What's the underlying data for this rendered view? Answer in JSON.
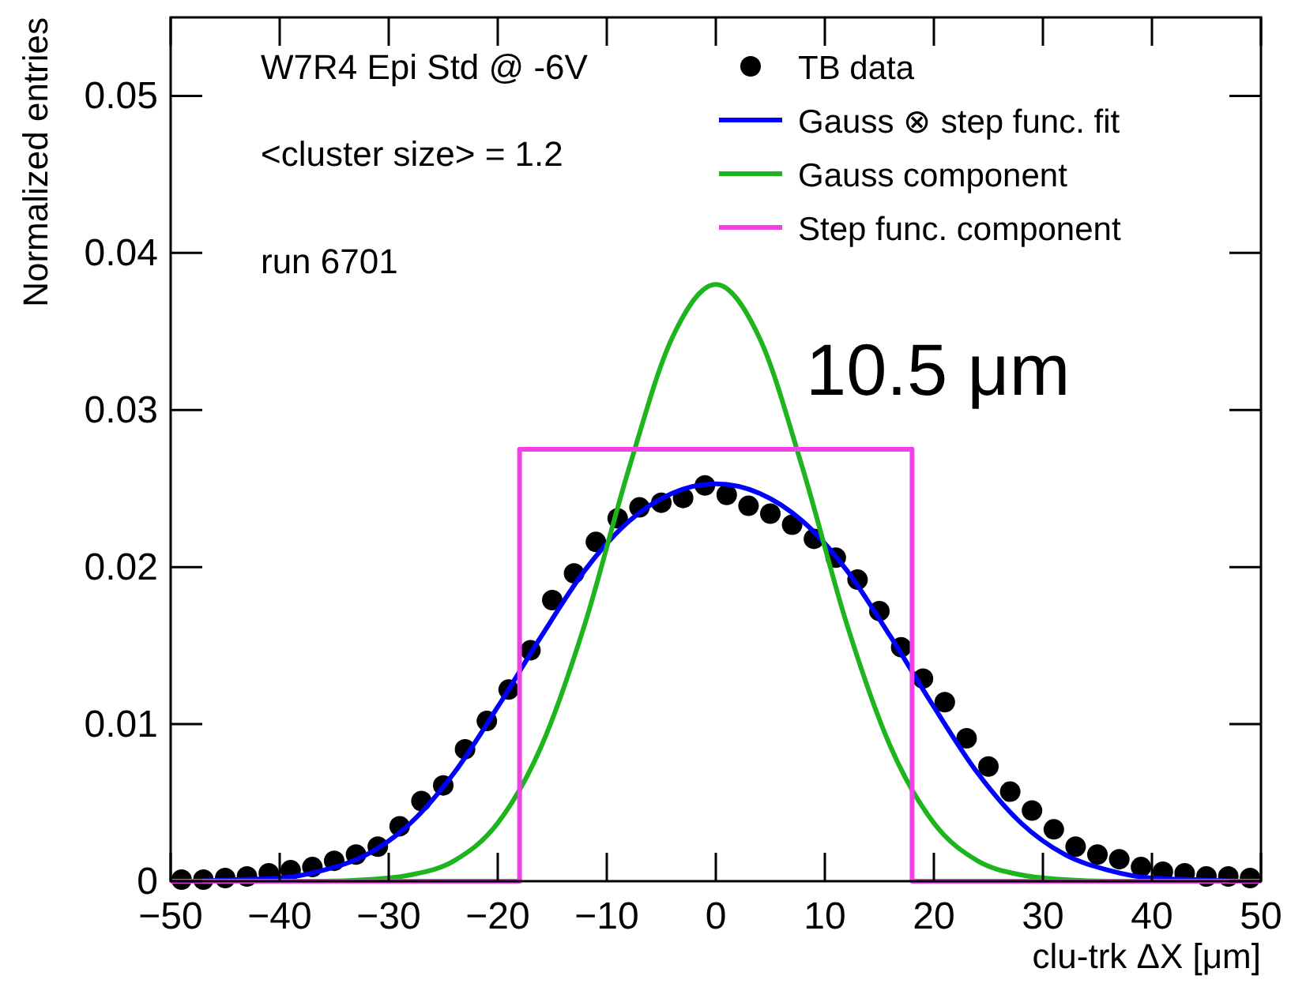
{
  "chart_data": {
    "type": "scatter",
    "xlabel": "clu-trk ΔX [μm]",
    "ylabel": "Normalized entries",
    "xlim": [
      -50,
      50
    ],
    "xticks": [
      -50,
      -40,
      -30,
      -20,
      -10,
      0,
      10,
      20,
      30,
      40,
      50
    ],
    "ylim": [
      0,
      0.055
    ],
    "yticks": [
      0,
      0.01,
      0.02,
      0.03,
      0.04,
      0.05
    ],
    "grid": false,
    "legend": "top right",
    "annotations": [
      "W7R4 Epi Std @ -6V",
      "<cluster size> = 1.2",
      "run 6701",
      "10.5 μm"
    ],
    "series": [
      {
        "name": "TB data",
        "marker": "circle",
        "color": "#000000",
        "x": [
          -49,
          -47,
          -45,
          -43,
          -41,
          -39,
          -37,
          -35,
          -33,
          -31,
          -29,
          -27,
          -25,
          -23,
          -21,
          -19,
          -17,
          -15,
          -13,
          -11,
          -9,
          -7,
          -5,
          -3,
          -1,
          1,
          3,
          5,
          7,
          9,
          11,
          13,
          15,
          17,
          19,
          21,
          23,
          25,
          27,
          29,
          31,
          33,
          35,
          37,
          39,
          41,
          43,
          45,
          47,
          49
        ],
        "values": [
          0.0001,
          0.0001,
          0.0002,
          0.0003,
          0.0005,
          0.0007,
          0.0009,
          0.0013,
          0.0017,
          0.0022,
          0.0035,
          0.0051,
          0.0061,
          0.0084,
          0.0102,
          0.0122,
          0.0147,
          0.0179,
          0.0196,
          0.0216,
          0.0231,
          0.0238,
          0.0241,
          0.0244,
          0.0252,
          0.0246,
          0.0239,
          0.0234,
          0.0227,
          0.0218,
          0.0206,
          0.0192,
          0.0172,
          0.0149,
          0.0129,
          0.0114,
          0.0091,
          0.0073,
          0.0057,
          0.0045,
          0.0033,
          0.0022,
          0.0017,
          0.0014,
          0.0009,
          0.0006,
          0.0005,
          0.0003,
          0.0003,
          0.0002
        ]
      },
      {
        "name": "Gauss ⊗ step func. fit",
        "type": "line",
        "color": "#0000ff",
        "x": [
          -50,
          -48,
          -44,
          -40,
          -36,
          -32,
          -28,
          -24,
          -20,
          -16,
          -12,
          -8,
          -4,
          0,
          4,
          8,
          12,
          16,
          20,
          24,
          28,
          32,
          36,
          40,
          44,
          48,
          50
        ],
        "values": [
          0,
          0,
          0.0001,
          0.0002,
          0.0007,
          0.0017,
          0.0037,
          0.0069,
          0.0111,
          0.0156,
          0.0198,
          0.0229,
          0.0247,
          0.0253,
          0.0247,
          0.0229,
          0.0198,
          0.0156,
          0.0111,
          0.0069,
          0.0037,
          0.0017,
          0.0007,
          0.0002,
          0.0001,
          0,
          0
        ]
      },
      {
        "name": "Gauss component",
        "type": "line",
        "color": "#1eb41e",
        "x": [
          -50,
          -40,
          -36,
          -32,
          -28,
          -24,
          -20,
          -16,
          -12,
          -8,
          -4,
          0,
          4,
          8,
          12,
          16,
          20,
          24,
          28,
          32,
          36,
          40,
          50
        ],
        "values": [
          0,
          0,
          0,
          0.0001,
          0.0004,
          0.0013,
          0.0037,
          0.0086,
          0.0164,
          0.0262,
          0.0346,
          0.038,
          0.0346,
          0.0262,
          0.0164,
          0.0086,
          0.0037,
          0.0013,
          0.0004,
          0.0001,
          0,
          0,
          0
        ]
      },
      {
        "name": "Step func. component",
        "type": "line",
        "color": "#f040e6",
        "x": [
          -50,
          -18,
          -18,
          18,
          18,
          50
        ],
        "values": [
          0,
          0,
          0.0275,
          0.0275,
          0,
          0
        ]
      }
    ]
  }
}
